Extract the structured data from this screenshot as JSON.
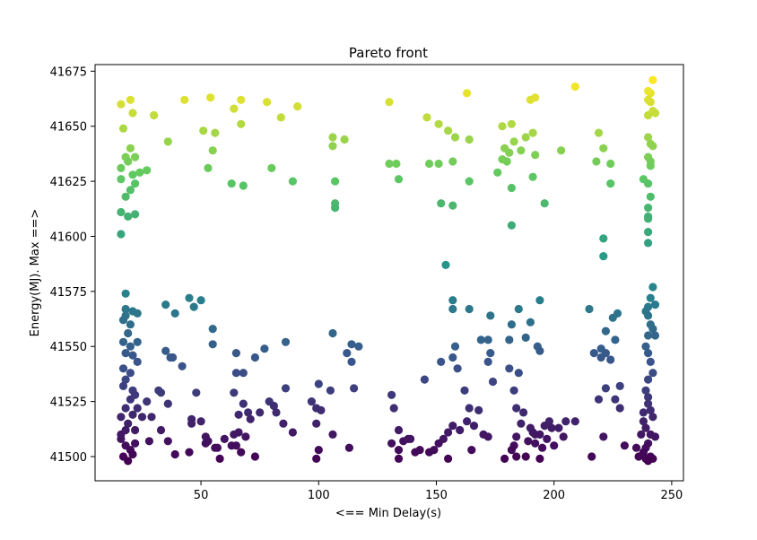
{
  "chart_data": {
    "type": "scatter",
    "title": "Pareto front",
    "xlabel": "<== Min Delay(s)",
    "ylabel": "Energy(MJ). Max ==>",
    "xlim": [
      5,
      255
    ],
    "ylim": [
      41489,
      41678
    ],
    "xticks": [
      50,
      100,
      150,
      200,
      250
    ],
    "yticks": [
      41500,
      41525,
      41550,
      41575,
      41600,
      41625,
      41650,
      41675
    ],
    "grid": false,
    "legend": "none",
    "colormap": "viridis",
    "color_by": "y",
    "points": [
      [
        16,
        41660
      ],
      [
        20,
        41662
      ],
      [
        21,
        41656
      ],
      [
        17,
        41649
      ],
      [
        20,
        41640
      ],
      [
        18,
        41636
      ],
      [
        22,
        41636
      ],
      [
        19,
        41634
      ],
      [
        16,
        41631
      ],
      [
        21,
        41628
      ],
      [
        24,
        41629
      ],
      [
        27,
        41630
      ],
      [
        16,
        41626
      ],
      [
        22,
        41624
      ],
      [
        20,
        41621
      ],
      [
        18,
        41618
      ],
      [
        16,
        41611
      ],
      [
        19,
        41609
      ],
      [
        22,
        41610
      ],
      [
        16,
        41601
      ],
      [
        18,
        41574
      ],
      [
        18,
        41567
      ],
      [
        21,
        41566
      ],
      [
        18,
        41564
      ],
      [
        23,
        41565
      ],
      [
        17,
        41562
      ],
      [
        20,
        41560
      ],
      [
        19,
        41556
      ],
      [
        17,
        41552
      ],
      [
        20,
        41550
      ],
      [
        23,
        41552
      ],
      [
        18,
        41547
      ],
      [
        21,
        41546
      ],
      [
        17,
        41540
      ],
      [
        20,
        41538
      ],
      [
        23,
        41543
      ],
      [
        18,
        41535
      ],
      [
        21,
        41530
      ],
      [
        17,
        41532
      ],
      [
        20,
        41526
      ],
      [
        22,
        41528
      ],
      [
        18,
        41522
      ],
      [
        21,
        41519
      ],
      [
        16,
        41518
      ],
      [
        19,
        41515
      ],
      [
        22,
        41512
      ],
      [
        16,
        41508
      ],
      [
        18,
        41505
      ],
      [
        20,
        41503
      ],
      [
        22,
        41506
      ],
      [
        17,
        41500
      ],
      [
        19,
        41498
      ],
      [
        21,
        41501
      ],
      [
        16,
        41510
      ],
      [
        18,
        41512
      ],
      [
        30,
        41655
      ],
      [
        36,
        41643
      ],
      [
        43,
        41662
      ],
      [
        54,
        41663
      ],
      [
        51,
        41648
      ],
      [
        56,
        41647
      ],
      [
        55,
        41639
      ],
      [
        53,
        41631
      ],
      [
        64,
        41658
      ],
      [
        67,
        41662
      ],
      [
        67,
        41651
      ],
      [
        63,
        41624
      ],
      [
        68,
        41623
      ],
      [
        78,
        41661
      ],
      [
        84,
        41654
      ],
      [
        80,
        41631
      ],
      [
        89,
        41625
      ],
      [
        91,
        41659
      ],
      [
        35,
        41569
      ],
      [
        39,
        41565
      ],
      [
        45,
        41572
      ],
      [
        47,
        41568
      ],
      [
        50,
        41571
      ],
      [
        35,
        41548
      ],
      [
        37,
        41545
      ],
      [
        38,
        41545
      ],
      [
        42,
        41541
      ],
      [
        55,
        41558
      ],
      [
        55,
        41551
      ],
      [
        32,
        41530
      ],
      [
        33,
        41529
      ],
      [
        36,
        41524
      ],
      [
        27,
        41525
      ],
      [
        23,
        41522
      ],
      [
        25,
        41518
      ],
      [
        29,
        41518
      ],
      [
        33,
        41512
      ],
      [
        36,
        41507
      ],
      [
        39,
        41501
      ],
      [
        46,
        41517
      ],
      [
        46,
        41515
      ],
      [
        50,
        41516
      ],
      [
        52,
        41509
      ],
      [
        52,
        41506
      ],
      [
        53,
        41507
      ],
      [
        57,
        41504
      ],
      [
        56,
        41504
      ],
      [
        58,
        41499
      ],
      [
        60,
        41508
      ],
      [
        45,
        41502
      ],
      [
        48,
        41529
      ],
      [
        28,
        41507
      ],
      [
        65,
        41547
      ],
      [
        65,
        41538
      ],
      [
        68,
        41538
      ],
      [
        73,
        41545
      ],
      [
        77,
        41549
      ],
      [
        86,
        41552
      ],
      [
        64,
        41529
      ],
      [
        68,
        41524
      ],
      [
        70,
        41520
      ],
      [
        71,
        41517
      ],
      [
        66,
        41511
      ],
      [
        64,
        41510
      ],
      [
        65,
        41505
      ],
      [
        69,
        41509
      ],
      [
        67,
        41502
      ],
      [
        73,
        41500
      ],
      [
        75,
        41520
      ],
      [
        79,
        41525
      ],
      [
        81,
        41523
      ],
      [
        82,
        41520
      ],
      [
        85,
        41515
      ],
      [
        86,
        41531
      ],
      [
        89,
        41511
      ],
      [
        66,
        41519
      ],
      [
        63,
        41505
      ],
      [
        106,
        41645
      ],
      [
        106,
        41641
      ],
      [
        111,
        41644
      ],
      [
        107,
        41625
      ],
      [
        107,
        41615
      ],
      [
        107,
        41613
      ],
      [
        106,
        41556
      ],
      [
        112,
        41547
      ],
      [
        114,
        41551
      ],
      [
        117,
        41550
      ],
      [
        114,
        41543
      ],
      [
        97,
        41525
      ],
      [
        100,
        41533
      ],
      [
        99,
        41522
      ],
      [
        101,
        41521
      ],
      [
        105,
        41530
      ],
      [
        99,
        41515
      ],
      [
        106,
        41510
      ],
      [
        100,
        41503
      ],
      [
        99,
        41499
      ],
      [
        113,
        41504
      ],
      [
        115,
        41531
      ],
      [
        130,
        41661
      ],
      [
        130,
        41633
      ],
      [
        133,
        41633
      ],
      [
        134,
        41626
      ],
      [
        146,
        41654
      ],
      [
        147,
        41633
      ],
      [
        151,
        41651
      ],
      [
        155,
        41648
      ],
      [
        151,
        41633
      ],
      [
        157,
        41634
      ],
      [
        158,
        41645
      ],
      [
        164,
        41644
      ],
      [
        152,
        41615
      ],
      [
        157,
        41614
      ],
      [
        164,
        41625
      ],
      [
        163,
        41665
      ],
      [
        154,
        41587
      ],
      [
        157,
        41571
      ],
      [
        157,
        41567
      ],
      [
        164,
        41567
      ],
      [
        131,
        41528
      ],
      [
        132,
        41522
      ],
      [
        134,
        41512
      ],
      [
        136,
        41507
      ],
      [
        138,
        41508
      ],
      [
        134,
        41503
      ],
      [
        134,
        41499
      ],
      [
        145,
        41535
      ],
      [
        147,
        41502
      ],
      [
        149,
        41503
      ],
      [
        151,
        41506
      ],
      [
        153,
        41508
      ],
      [
        155,
        41511
      ],
      [
        155,
        41499
      ],
      [
        157,
        41514
      ],
      [
        152,
        41543
      ],
      [
        157,
        41545
      ],
      [
        158,
        41550
      ],
      [
        159,
        41540
      ],
      [
        162,
        41530
      ],
      [
        164,
        41522
      ],
      [
        165,
        41503
      ],
      [
        166,
        41514
      ],
      [
        170,
        41510
      ],
      [
        172,
        41509
      ],
      [
        168,
        41521
      ],
      [
        169,
        41553
      ],
      [
        172,
        41553
      ],
      [
        173,
        41547
      ],
      [
        172,
        41543
      ],
      [
        173,
        41564
      ],
      [
        174,
        41534
      ],
      [
        141,
        41502
      ],
      [
        143,
        41503
      ],
      [
        131,
        41506
      ],
      [
        139,
        41508
      ],
      [
        160,
        41512
      ],
      [
        163,
        41516
      ],
      [
        176,
        41629
      ],
      [
        178,
        41635
      ],
      [
        179,
        41640
      ],
      [
        180,
        41634
      ],
      [
        181,
        41638
      ],
      [
        182,
        41622
      ],
      [
        182,
        41605
      ],
      [
        183,
        41643
      ],
      [
        186,
        41639
      ],
      [
        188,
        41645
      ],
      [
        191,
        41647
      ],
      [
        192,
        41637
      ],
      [
        191,
        41627
      ],
      [
        196,
        41615
      ],
      [
        178,
        41650
      ],
      [
        182,
        41651
      ],
      [
        190,
        41662
      ],
      [
        192,
        41663
      ],
      [
        182,
        41560
      ],
      [
        185,
        41567
      ],
      [
        190,
        41561
      ],
      [
        194,
        41571
      ],
      [
        181,
        41553
      ],
      [
        188,
        41554
      ],
      [
        193,
        41550
      ],
      [
        194,
        41548
      ],
      [
        185,
        41538
      ],
      [
        183,
        41530
      ],
      [
        181,
        41540
      ],
      [
        184,
        41522
      ],
      [
        187,
        41520
      ],
      [
        186,
        41515
      ],
      [
        190,
        41513
      ],
      [
        191,
        41511
      ],
      [
        192,
        41510
      ],
      [
        194,
        41510
      ],
      [
        196,
        41514
      ],
      [
        198,
        41516
      ],
      [
        199,
        41513
      ],
      [
        197,
        41508
      ],
      [
        195,
        41504
      ],
      [
        192,
        41506
      ],
      [
        189,
        41507
      ],
      [
        183,
        41505
      ],
      [
        184,
        41509
      ],
      [
        182,
        41503
      ],
      [
        179,
        41499
      ],
      [
        184,
        41500
      ],
      [
        188,
        41500
      ],
      [
        194,
        41499
      ],
      [
        200,
        41505
      ],
      [
        204,
        41509
      ],
      [
        205,
        41516
      ],
      [
        202,
        41513
      ],
      [
        209,
        41516
      ],
      [
        216,
        41500
      ],
      [
        221,
        41509
      ],
      [
        209,
        41668
      ],
      [
        203,
        41639
      ],
      [
        219,
        41647
      ],
      [
        221,
        41640
      ],
      [
        218,
        41634
      ],
      [
        224,
        41633
      ],
      [
        224,
        41624
      ],
      [
        221,
        41599
      ],
      [
        221,
        41591
      ],
      [
        215,
        41567
      ],
      [
        222,
        41557
      ],
      [
        220,
        41549
      ],
      [
        217,
        41547
      ],
      [
        220,
        41545
      ],
      [
        222,
        41547
      ],
      [
        226,
        41553
      ],
      [
        224,
        41544
      ],
      [
        225,
        41563
      ],
      [
        227,
        41565
      ],
      [
        222,
        41531
      ],
      [
        219,
        41526
      ],
      [
        226,
        41526
      ],
      [
        228,
        41522
      ],
      [
        228,
        41532
      ],
      [
        230,
        41505
      ],
      [
        235,
        41504
      ],
      [
        236,
        41500
      ],
      [
        239,
        41499
      ],
      [
        238,
        41626
      ],
      [
        240,
        41655
      ],
      [
        241,
        41665
      ],
      [
        240,
        41666
      ],
      [
        242,
        41671
      ],
      [
        240,
        41662
      ],
      [
        241,
        41661
      ],
      [
        242,
        41657
      ],
      [
        243,
        41656
      ],
      [
        240,
        41645
      ],
      [
        241,
        41642
      ],
      [
        242,
        41641
      ],
      [
        240,
        41636
      ],
      [
        241,
        41634
      ],
      [
        241,
        41632
      ],
      [
        240,
        41624
      ],
      [
        241,
        41618
      ],
      [
        240,
        41613
      ],
      [
        240,
        41609
      ],
      [
        240,
        41608
      ],
      [
        240,
        41602
      ],
      [
        240,
        41597
      ],
      [
        242,
        41577
      ],
      [
        241,
        41572
      ],
      [
        243,
        41569
      ],
      [
        240,
        41568
      ],
      [
        239,
        41566
      ],
      [
        240,
        41564
      ],
      [
        241,
        41560
      ],
      [
        242,
        41558
      ],
      [
        243,
        41555
      ],
      [
        240,
        41555
      ],
      [
        239,
        41550
      ],
      [
        240,
        41547
      ],
      [
        241,
        41543
      ],
      [
        242,
        41538
      ],
      [
        240,
        41535
      ],
      [
        239,
        41530
      ],
      [
        240,
        41527
      ],
      [
        240,
        41524
      ],
      [
        241,
        41521
      ],
      [
        242,
        41518
      ],
      [
        238,
        41516
      ],
      [
        239,
        41513
      ],
      [
        241,
        41510
      ],
      [
        243,
        41509
      ],
      [
        240,
        41506
      ],
      [
        239,
        41504
      ],
      [
        238,
        41502
      ],
      [
        241,
        41500
      ],
      [
        242,
        41499
      ],
      [
        240,
        41498
      ],
      [
        237,
        41510
      ],
      [
        238,
        41520
      ]
    ]
  }
}
